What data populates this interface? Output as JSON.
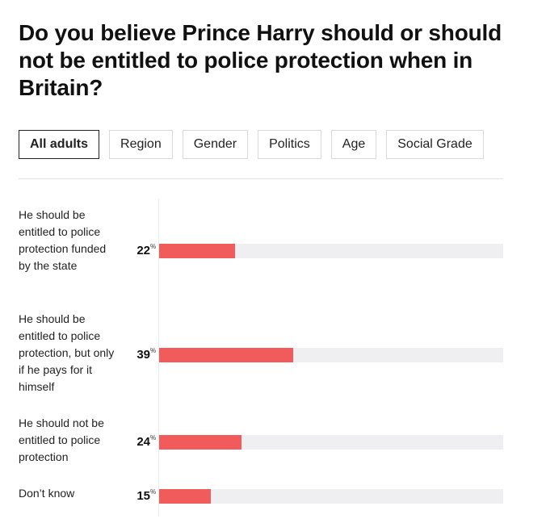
{
  "title": "Do you believe Prince Harry should or should not be entitled to police protection when in Britain?",
  "tabs": [
    {
      "label": "All adults",
      "active": true
    },
    {
      "label": "Region",
      "active": false
    },
    {
      "label": "Gender",
      "active": false
    },
    {
      "label": "Politics",
      "active": false
    },
    {
      "label": "Age",
      "active": false
    },
    {
      "label": "Social Grade",
      "active": false
    }
  ],
  "percent_symbol": "%",
  "colors": {
    "bar": "#f25b5b",
    "track": "#efeff2",
    "text": "#111111"
  },
  "chart_data": {
    "type": "bar",
    "orientation": "horizontal",
    "categories": [
      "He should be entitled to police protection funded by the state",
      "He should be entitled to police protection, but only if he pays for it himself",
      "He should not be entitled to police protection",
      "Don’t know"
    ],
    "values": [
      22,
      39,
      24,
      15
    ],
    "unit": "%",
    "xlim": [
      0,
      100
    ],
    "grid": false,
    "legend": "none"
  }
}
